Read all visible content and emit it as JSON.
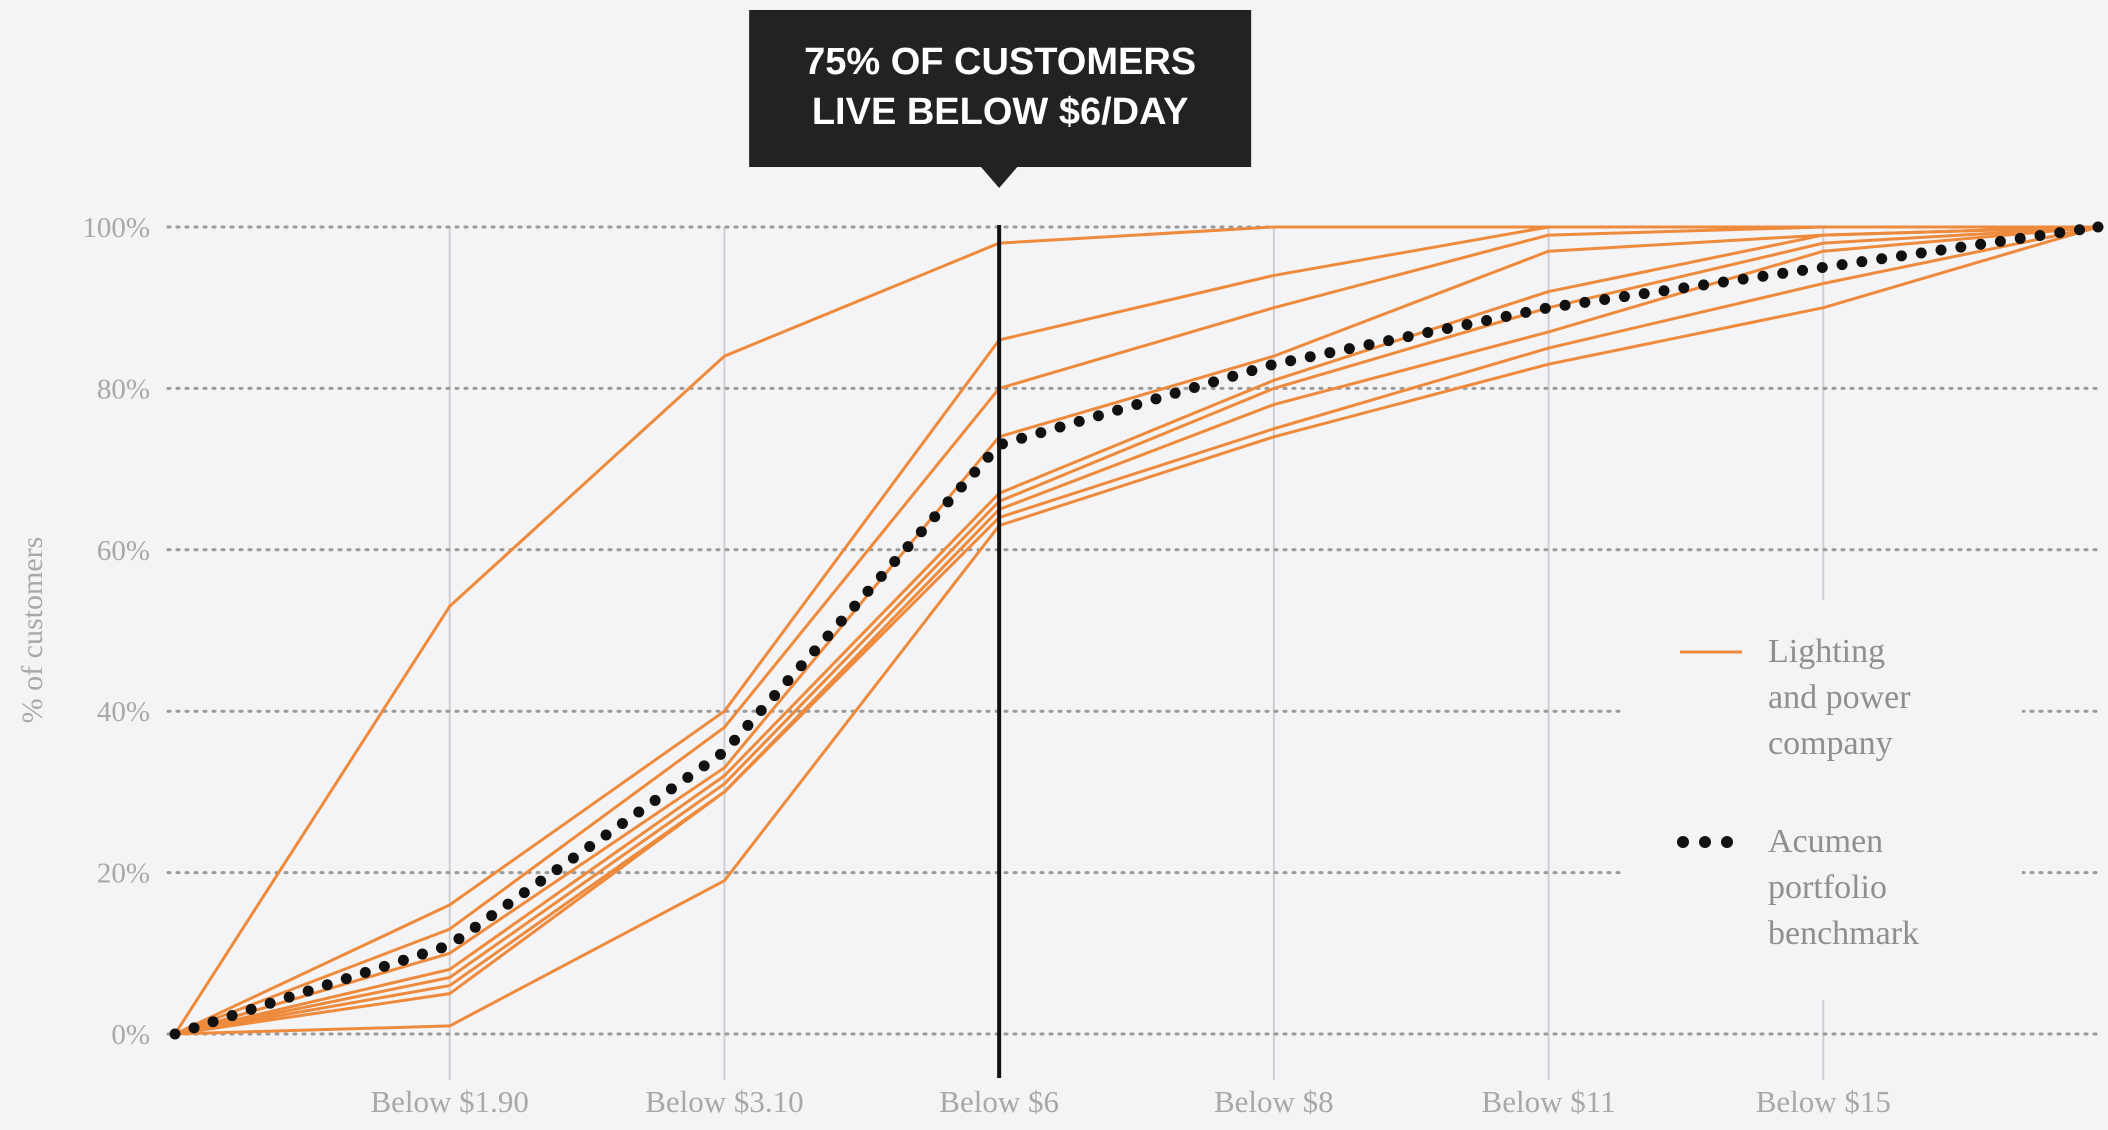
{
  "chart_data": {
    "type": "line",
    "title": "",
    "xlabel": "",
    "ylabel": "% of customers",
    "categories": [
      "",
      "Below $1.90",
      "Below $3.10",
      "Below $6",
      "Below $8",
      "Below $11",
      "Below $15",
      ""
    ],
    "ylim": [
      0,
      100
    ],
    "yticks": [
      "0%",
      "20%",
      "40%",
      "60%",
      "80%",
      "100%"
    ],
    "grid": true,
    "legend_position": "right",
    "colors": {
      "company": "#ee8a3c",
      "benchmark": "#111111",
      "grid_h": "#9a9a9a",
      "grid_v": "#cfcfd3",
      "callout_bg": "#222222",
      "callout_text": "#ffffff",
      "axis_text": "#a8a8a8",
      "legend_text": "#8f8f8f",
      "marker_line": "#111111"
    },
    "series": [
      {
        "role": "company",
        "values": [
          0,
          53,
          84,
          98,
          100,
          100,
          100,
          100
        ]
      },
      {
        "role": "company",
        "values": [
          0,
          16,
          40,
          86,
          94,
          100,
          100,
          100
        ]
      },
      {
        "role": "company",
        "values": [
          0,
          13,
          38,
          80,
          90,
          99,
          100,
          100
        ]
      },
      {
        "role": "company",
        "values": [
          0,
          10,
          33,
          74,
          84,
          97,
          99,
          100
        ]
      },
      {
        "role": "company",
        "values": [
          0,
          8,
          32,
          67,
          81,
          92,
          99,
          100
        ]
      },
      {
        "role": "company",
        "values": [
          0,
          7,
          31,
          66,
          80,
          90,
          98,
          100
        ]
      },
      {
        "role": "company",
        "values": [
          0,
          6,
          30,
          65,
          78,
          87,
          97,
          100
        ]
      },
      {
        "role": "company",
        "values": [
          0,
          5,
          30,
          64,
          75,
          85,
          93,
          100
        ]
      },
      {
        "role": "company",
        "values": [
          0,
          1,
          19,
          63,
          74,
          83,
          90,
          100
        ]
      },
      {
        "role": "benchmark",
        "name": "Acumen portfolio benchmark",
        "values": [
          0,
          11,
          35,
          73,
          83,
          90,
          95,
          100
        ]
      }
    ],
    "marker": {
      "category": "Below $6",
      "text_lines": [
        "75% OF CUSTOMERS",
        "LIVE BELOW $6/DAY"
      ]
    },
    "legend": [
      {
        "symbol": "line",
        "lines": [
          "Lighting",
          "and power",
          "company"
        ]
      },
      {
        "symbol": "dots",
        "lines": [
          "Acumen",
          "portfolio",
          "benchmark"
        ]
      }
    ]
  }
}
